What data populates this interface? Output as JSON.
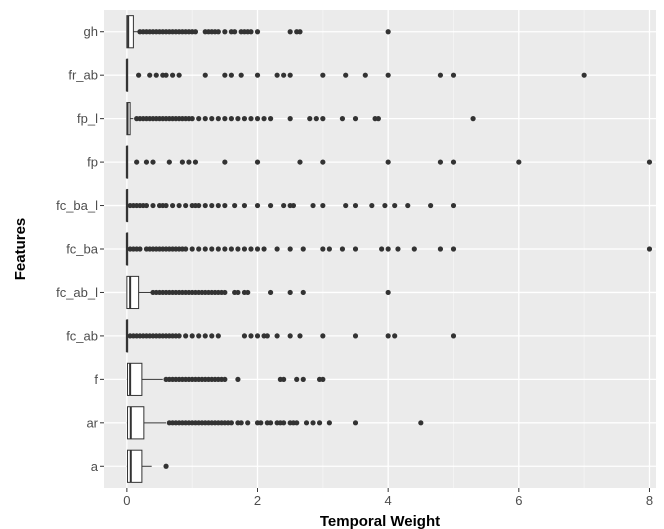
{
  "chart_data": {
    "type": "boxplot",
    "orientation": "horizontal",
    "xlabel": "Temporal Weight",
    "ylabel": "Features",
    "xlim": [
      -0.35,
      8.1
    ],
    "x_ticks": [
      0,
      2,
      4,
      6,
      8
    ],
    "x_tick_labels": [
      "0",
      "2",
      "4",
      "6",
      "8"
    ],
    "grid": true,
    "legend": "none",
    "categories": [
      "gh",
      "fr_ab",
      "fp_l",
      "fp",
      "fc_ba_l",
      "fc_ba",
      "fc_ab_l",
      "fc_ab",
      "f",
      "ar",
      "a"
    ],
    "boxes": [
      {
        "category": "gh",
        "q1": 0.0,
        "median": 0.02,
        "q3": 0.1,
        "whisker_low": 0.0,
        "whisker_high": 0.18,
        "outliers": [
          0.2,
          0.25,
          0.3,
          0.35,
          0.4,
          0.45,
          0.5,
          0.55,
          0.6,
          0.65,
          0.7,
          0.75,
          0.8,
          0.85,
          0.9,
          0.95,
          1.0,
          1.05,
          1.2,
          1.25,
          1.3,
          1.35,
          1.4,
          1.5,
          1.6,
          1.65,
          1.75,
          1.8,
          1.85,
          1.9,
          2.0,
          2.5,
          2.6,
          2.65,
          4.0
        ]
      },
      {
        "category": "fr_ab",
        "q1": 0.0,
        "median": 0.0,
        "q3": 0.01,
        "whisker_low": 0.0,
        "whisker_high": 0.01,
        "outliers": [
          0.18,
          0.35,
          0.45,
          0.55,
          0.6,
          0.7,
          0.8,
          1.2,
          1.5,
          1.6,
          1.75,
          2.0,
          2.3,
          2.4,
          2.5,
          3.0,
          3.35,
          3.65,
          4.0,
          4.8,
          5.0,
          7.0
        ]
      },
      {
        "category": "fp_l",
        "q1": 0.0,
        "median": 0.01,
        "q3": 0.05,
        "whisker_low": 0.0,
        "whisker_high": 0.1,
        "outliers": [
          0.15,
          0.2,
          0.25,
          0.3,
          0.35,
          0.4,
          0.45,
          0.5,
          0.55,
          0.6,
          0.65,
          0.7,
          0.75,
          0.8,
          0.85,
          0.9,
          0.95,
          1.0,
          1.1,
          1.2,
          1.3,
          1.4,
          1.5,
          1.6,
          1.7,
          1.8,
          1.9,
          2.0,
          2.1,
          2.2,
          2.5,
          2.8,
          2.9,
          3.0,
          3.3,
          3.5,
          3.8,
          3.85,
          5.3
        ]
      },
      {
        "category": "fp",
        "q1": 0.0,
        "median": 0.0,
        "q3": 0.0,
        "whisker_low": 0.0,
        "whisker_high": 0.0,
        "outliers": [
          0.15,
          0.3,
          0.4,
          0.65,
          0.85,
          0.95,
          1.05,
          1.5,
          2.0,
          2.65,
          3.0,
          4.0,
          4.8,
          5.0,
          6.0,
          8.0
        ]
      },
      {
        "category": "fc_ba_l",
        "q1": 0.0,
        "median": 0.0,
        "q3": 0.01,
        "whisker_low": 0.0,
        "whisker_high": 0.02,
        "outliers": [
          0.05,
          0.1,
          0.15,
          0.2,
          0.25,
          0.3,
          0.4,
          0.5,
          0.55,
          0.6,
          0.7,
          0.8,
          0.9,
          1.0,
          1.05,
          1.1,
          1.2,
          1.3,
          1.4,
          1.5,
          1.65,
          1.8,
          2.0,
          2.2,
          2.4,
          2.5,
          2.55,
          2.85,
          3.0,
          3.35,
          3.5,
          3.75,
          3.95,
          4.1,
          4.3,
          4.65,
          5.0
        ]
      },
      {
        "category": "fc_ba",
        "q1": 0.0,
        "median": 0.0,
        "q3": 0.01,
        "whisker_low": 0.0,
        "whisker_high": 0.02,
        "outliers": [
          0.05,
          0.1,
          0.15,
          0.2,
          0.3,
          0.35,
          0.4,
          0.45,
          0.5,
          0.55,
          0.6,
          0.65,
          0.7,
          0.75,
          0.8,
          0.85,
          0.9,
          1.0,
          1.1,
          1.2,
          1.3,
          1.4,
          1.5,
          1.6,
          1.7,
          1.8,
          1.9,
          2.0,
          2.1,
          2.3,
          2.5,
          2.7,
          3.0,
          3.1,
          3.3,
          3.5,
          3.9,
          4.0,
          4.15,
          4.4,
          4.8,
          5.0,
          8.0
        ]
      },
      {
        "category": "fc_ab_l",
        "q1": 0.0,
        "median": 0.05,
        "q3": 0.18,
        "whisker_low": 0.0,
        "whisker_high": 0.38,
        "outliers": [
          0.4,
          0.45,
          0.5,
          0.55,
          0.6,
          0.65,
          0.7,
          0.75,
          0.8,
          0.85,
          0.9,
          0.95,
          1.0,
          1.05,
          1.1,
          1.15,
          1.2,
          1.25,
          1.3,
          1.35,
          1.4,
          1.45,
          1.5,
          1.65,
          1.7,
          1.8,
          1.85,
          2.2,
          2.5,
          2.7,
          4.0
        ]
      },
      {
        "category": "fc_ab",
        "q1": 0.0,
        "median": 0.0,
        "q3": 0.01,
        "whisker_low": 0.0,
        "whisker_high": 0.01,
        "outliers": [
          0.05,
          0.1,
          0.15,
          0.2,
          0.25,
          0.3,
          0.35,
          0.4,
          0.45,
          0.5,
          0.55,
          0.6,
          0.65,
          0.7,
          0.75,
          0.8,
          0.9,
          1.0,
          1.1,
          1.2,
          1.3,
          1.4,
          1.8,
          1.9,
          2.0,
          2.1,
          2.15,
          2.3,
          2.5,
          2.65,
          3.0,
          3.5,
          4.0,
          4.1,
          5.0
        ]
      },
      {
        "category": "f",
        "q1": 0.01,
        "median": 0.05,
        "q3": 0.23,
        "whisker_low": 0.0,
        "whisker_high": 0.55,
        "outliers": [
          0.6,
          0.65,
          0.7,
          0.75,
          0.8,
          0.85,
          0.9,
          0.95,
          1.0,
          1.05,
          1.1,
          1.15,
          1.2,
          1.25,
          1.3,
          1.35,
          1.4,
          1.45,
          1.5,
          1.7,
          2.35,
          2.4,
          2.6,
          2.7,
          2.95,
          3.0
        ]
      },
      {
        "category": "ar",
        "q1": 0.01,
        "median": 0.06,
        "q3": 0.26,
        "whisker_low": 0.0,
        "whisker_high": 0.6,
        "outliers": [
          0.65,
          0.7,
          0.75,
          0.8,
          0.85,
          0.9,
          0.95,
          1.0,
          1.05,
          1.1,
          1.15,
          1.2,
          1.25,
          1.3,
          1.35,
          1.4,
          1.45,
          1.5,
          1.55,
          1.6,
          1.7,
          1.75,
          1.85,
          2.0,
          2.05,
          2.15,
          2.2,
          2.3,
          2.35,
          2.4,
          2.5,
          2.55,
          2.6,
          2.75,
          2.85,
          2.95,
          3.1,
          3.5,
          4.5
        ]
      },
      {
        "category": "a",
        "q1": 0.01,
        "median": 0.06,
        "q3": 0.23,
        "whisker_low": 0.0,
        "whisker_high": 0.38,
        "outliers": [
          0.6
        ]
      }
    ]
  }
}
